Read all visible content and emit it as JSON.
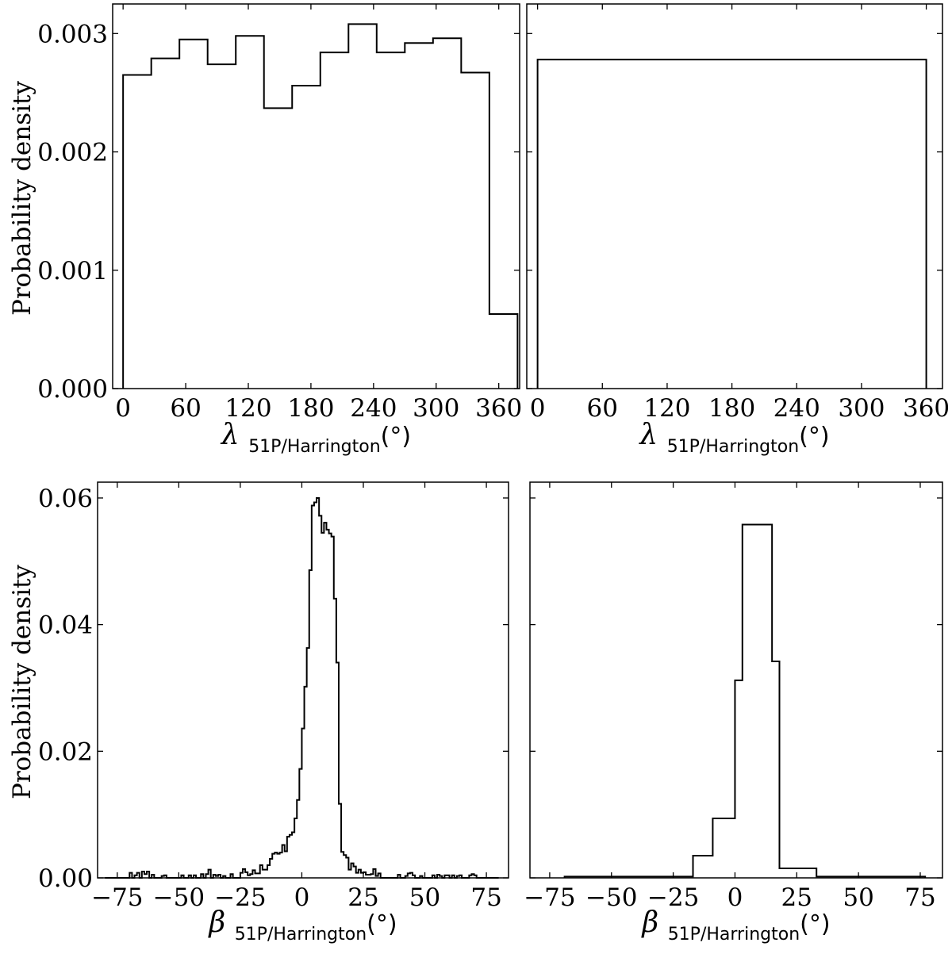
{
  "chart_data": [
    {
      "type": "histogram",
      "panel": "top-left",
      "xlabel": {
        "symbol": "λ",
        "subscript": "51P/Harrington",
        "unit": "(°)"
      },
      "ylabel": "Probability density",
      "xlim": [
        -10,
        380
      ],
      "ylim": [
        0,
        0.00325
      ],
      "xticks": [
        0,
        60,
        120,
        180,
        240,
        300,
        360
      ],
      "xtick_labels": [
        "0",
        "60",
        "120",
        "180",
        "240",
        "300",
        "360"
      ],
      "yticks": [
        0,
        0.001,
        0.002,
        0.003
      ],
      "ytick_labels": [
        "0.000",
        "0.001",
        "0.002",
        "0.003"
      ],
      "bin_edges": [
        0,
        27,
        54,
        81,
        108,
        135,
        162,
        189,
        216,
        243,
        270,
        297,
        324,
        351,
        378
      ],
      "values": [
        0.00265,
        0.00279,
        0.00295,
        0.00274,
        0.00298,
        0.00237,
        0.00256,
        0.00284,
        0.00308,
        0.00284,
        0.00292,
        0.00296,
        0.00267,
        0.00063
      ]
    },
    {
      "type": "histogram",
      "panel": "top-right",
      "xlabel": {
        "symbol": "λ",
        "subscript": "51P/Harrington",
        "unit": "(°)"
      },
      "ylabel": "",
      "xlim": [
        -10,
        375
      ],
      "ylim": [
        0,
        0.00325
      ],
      "xticks": [
        0,
        60,
        120,
        180,
        240,
        300,
        360
      ],
      "xtick_labels": [
        "0",
        "60",
        "120",
        "180",
        "240",
        "300",
        "360"
      ],
      "yticks": [
        0,
        0.001,
        0.002,
        0.003
      ],
      "ytick_labels": [],
      "bin_edges": [
        0,
        360
      ],
      "values": [
        0.00278
      ]
    },
    {
      "type": "histogram",
      "panel": "bottom-left",
      "xlabel": {
        "symbol": "β",
        "subscript": "51P/Harrington",
        "unit": "(°)"
      },
      "ylabel": "Probability density",
      "xlim": [
        -83,
        84
      ],
      "ylim": [
        0,
        0.0625
      ],
      "xticks": [
        -75,
        -50,
        -25,
        0,
        25,
        50,
        75
      ],
      "xtick_labels": [
        "−75",
        "−50",
        "−25",
        "0",
        "25",
        "50",
        "75"
      ],
      "yticks": [
        0,
        0.02,
        0.04,
        0.06
      ],
      "ytick_labels": [
        "0.00",
        "0.02",
        "0.04",
        "0.06"
      ],
      "bin_start": -80,
      "bin_width": 1,
      "values": [
        0,
        0,
        0,
        0,
        0,
        0,
        0,
        0,
        0,
        0,
        0.0008,
        0,
        0.0004,
        0.0008,
        0,
        0.001,
        0.0006,
        0.001,
        0,
        0.0005,
        0,
        0,
        0,
        0.0003,
        0.0004,
        0,
        0,
        0,
        0,
        0,
        0,
        0.0004,
        0,
        0,
        0.0004,
        0,
        0.0004,
        0,
        0,
        0.0006,
        0,
        0.0006,
        0.0013,
        0,
        0.0005,
        0.0003,
        0.0005,
        0,
        0.0003,
        0,
        0,
        0.0006,
        0,
        0,
        0,
        0.0008,
        0.0014,
        0.0009,
        0.0004,
        0.0006,
        0.0012,
        0.0007,
        0.0007,
        0.002,
        0.0013,
        0.0013,
        0.002,
        0.003,
        0.0038,
        0.004,
        0.0038,
        0.004,
        0.0052,
        0.0042,
        0.0065,
        0.0068,
        0.0072,
        0.0094,
        0.0123,
        0.0172,
        0.0236,
        0.0302,
        0.0363,
        0.0486,
        0.0588,
        0.0593,
        0.06,
        0.0572,
        0.0545,
        0.0561,
        0.055,
        0.0544,
        0.0539,
        0.0441,
        0.034,
        0.0117,
        0.0041,
        0.0036,
        0.0032,
        0.0013,
        0.0023,
        0.0018,
        0.0008,
        0.0013,
        0.0008,
        0.0009,
        0.0005,
        0.0005,
        0.0006,
        0.0014,
        0.0003,
        0.0007,
        0,
        0,
        0,
        0,
        0,
        0,
        0,
        0.0005,
        0,
        0,
        0.0003,
        0.0007,
        0.0008,
        0.0004,
        0,
        0,
        0.0003,
        0,
        0,
        0,
        0,
        0.0004,
        0,
        0.0005,
        0.0003,
        0,
        0.0004,
        0.0004,
        0,
        0.0004,
        0,
        0.0003,
        0.0004,
        0,
        0,
        0,
        0.0004,
        0.0006,
        0.0004,
        0,
        0,
        0,
        0,
        0,
        0,
        0,
        0,
        0
      ]
    },
    {
      "type": "histogram",
      "panel": "bottom-right",
      "xlabel": {
        "symbol": "β",
        "subscript": "51P/Harrington",
        "unit": "(°)"
      },
      "ylabel": "",
      "xlim": [
        -83,
        84
      ],
      "ylim": [
        0,
        0.0625
      ],
      "xticks": [
        -75,
        -50,
        -25,
        0,
        25,
        50,
        75
      ],
      "xtick_labels": [
        "−75",
        "−50",
        "−25",
        "0",
        "25",
        "50",
        "75"
      ],
      "yticks": [
        0,
        0.02,
        0.04,
        0.06
      ],
      "ytick_labels": [],
      "bin_edges": [
        -69,
        -17,
        -9,
        0,
        3,
        15,
        18,
        33,
        77
      ],
      "values": [
        0.0002,
        0.0035,
        0.0094,
        0.0312,
        0.0558,
        0.0342,
        0.0015,
        0.0002
      ]
    }
  ]
}
